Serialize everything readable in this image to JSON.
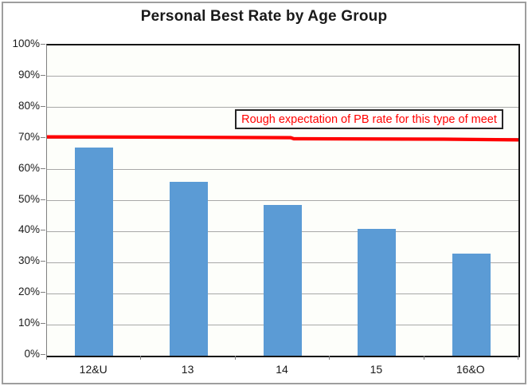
{
  "chart_data": {
    "type": "bar",
    "title": "Personal Best Rate by Age Group",
    "categories": [
      "12&U",
      "13",
      "14",
      "15",
      "16&O"
    ],
    "values": [
      67,
      56,
      48.5,
      41,
      33
    ],
    "value_unit": "percent",
    "xlabel": "",
    "ylabel": "",
    "ylim": [
      0,
      100
    ],
    "ytick_labels_top_to_bottom": [
      "100%",
      "90%",
      "80%",
      "70%",
      "60%",
      "50%",
      "40%",
      "30%",
      "20%",
      "10%",
      "0%"
    ],
    "grid": true,
    "legend": false,
    "bar_color": "#5b9bd5",
    "plot_background": "#fdfefa",
    "gridline_color": "#a8a8a8",
    "frame_border_color": "#9e9e9e",
    "reference_line": {
      "value": 70,
      "color": "#ff0000",
      "annotation": "Rough expectation of PB rate for this type of meet",
      "annotation_color": "#ff0000",
      "annotation_border_color": "#262626"
    }
  }
}
